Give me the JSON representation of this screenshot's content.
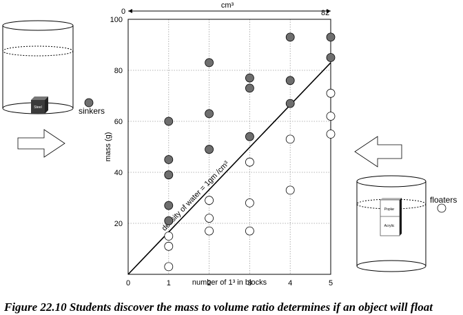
{
  "caption": "Figure 22.10 Students discover the mass to volume ratio determines if an object will float",
  "chart_data": {
    "type": "scatter",
    "xlabel": "number of 1³ in blocks",
    "ylabel": "mass (g)",
    "top_axis": {
      "label": "cm³",
      "min_label": "0",
      "max_label": "82"
    },
    "xlim": [
      0,
      5
    ],
    "ylim": [
      0,
      100
    ],
    "x_ticks": [
      "0",
      "1",
      "2",
      "3",
      "4",
      "5"
    ],
    "y_ticks": [
      "20",
      "40",
      "60",
      "80",
      "100"
    ],
    "grid": true,
    "series": [
      {
        "name": "sinkers",
        "marker": "filled",
        "x": [
          1,
          1,
          1,
          1,
          1,
          2,
          2,
          2,
          3,
          3,
          3,
          4,
          4,
          4,
          5,
          5
        ],
        "y": [
          21,
          27,
          39,
          45,
          60,
          49,
          63,
          83,
          54,
          73,
          77,
          67,
          76,
          93,
          85,
          93
        ]
      },
      {
        "name": "floaters",
        "marker": "hollow",
        "x": [
          1,
          1,
          1,
          2,
          2,
          2,
          3,
          3,
          3,
          4,
          4,
          5,
          5,
          5
        ],
        "y": [
          3,
          11,
          15,
          17,
          22,
          29,
          17,
          28,
          44,
          33,
          53,
          55,
          62,
          71
        ]
      }
    ],
    "reference_line": {
      "label": "density of water = 1gm /cm³",
      "x": [
        0,
        5
      ],
      "y": [
        0,
        83
      ]
    }
  },
  "illustrations": {
    "left_block_label": "Steel",
    "right_block_top_label": "Poplar",
    "right_block_bottom_label": "Acrylic"
  },
  "colors": {
    "sinker_fill": "#6e6e6e",
    "floater_fill": "#ffffff",
    "grid": "#9a9a9a",
    "block_dark": "#444444"
  }
}
